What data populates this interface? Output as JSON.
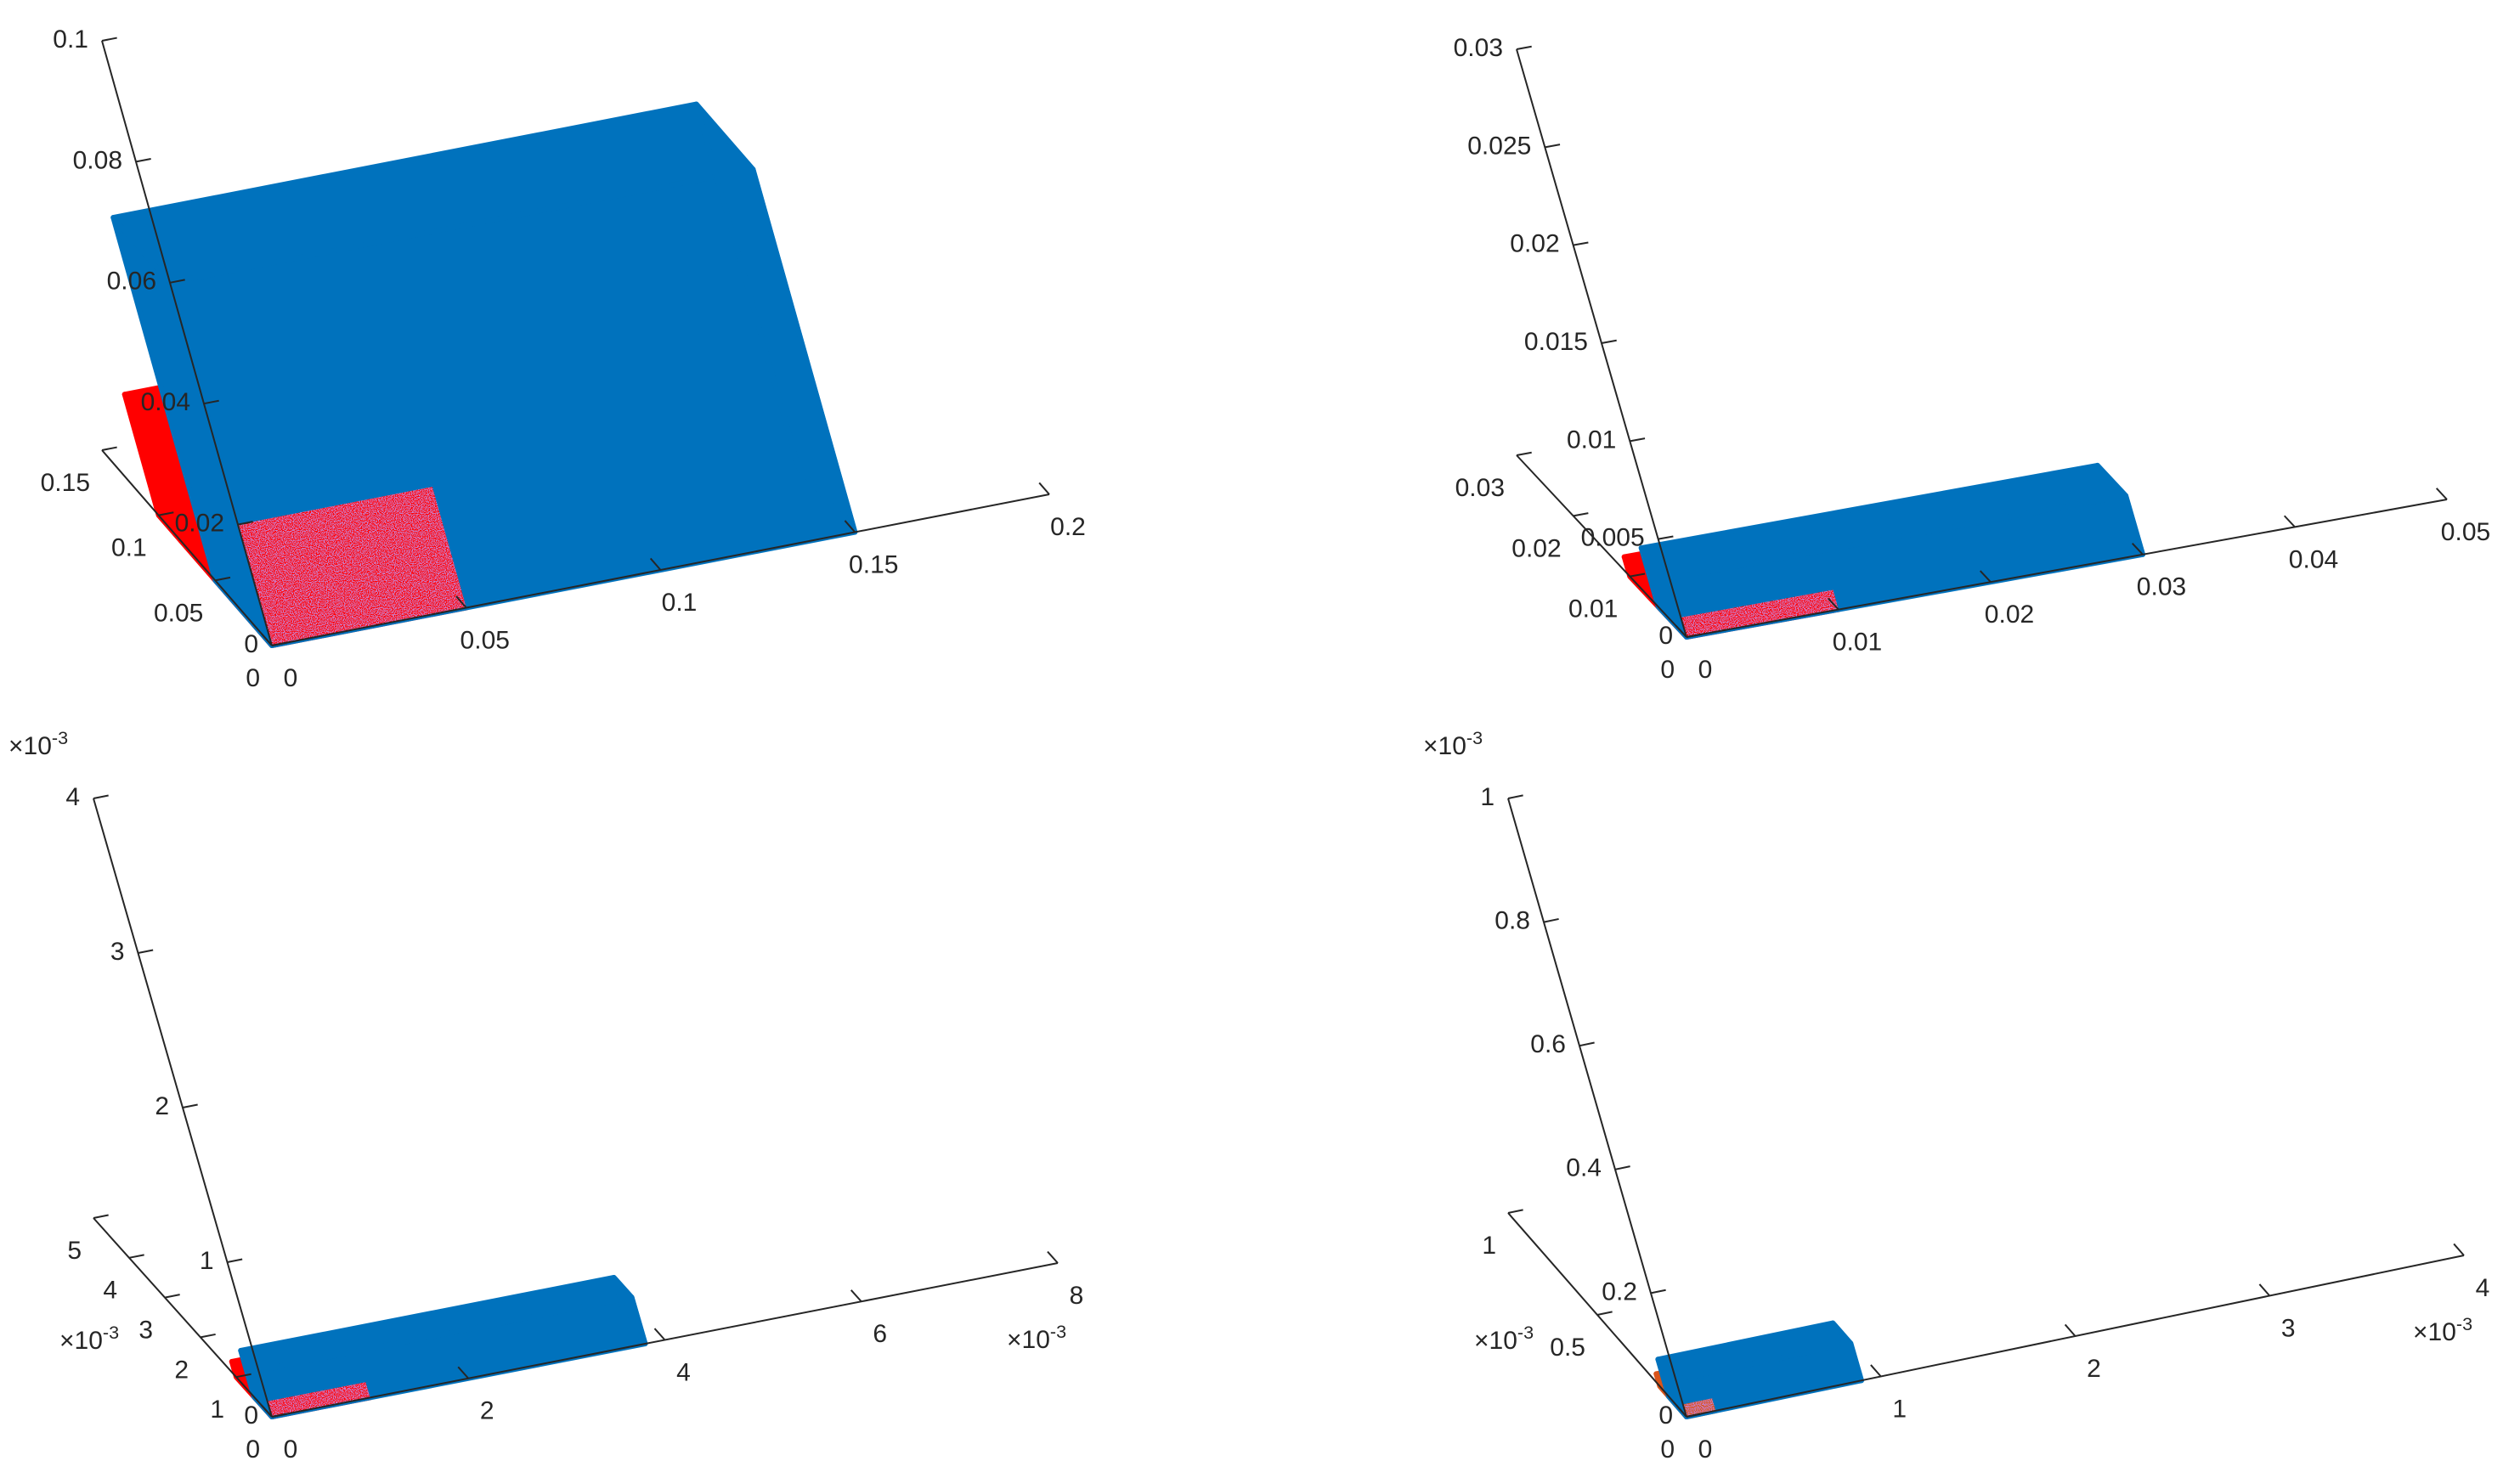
{
  "colors": {
    "axis": "#262626",
    "series_a": "#ff0000",
    "series_b": "#0072bd",
    "series_c": "#d95319",
    "mix": "#8a3aa0"
  },
  "chart_data": [
    {
      "type": "scatter",
      "view": "3d",
      "grid": false,
      "exponent_x": "",
      "exponent_y": "",
      "exponent_z": "",
      "x_ticks": [
        0,
        0.05,
        0.1,
        0.15,
        0.2
      ],
      "x_tick_labels": [
        "0",
        "0.05",
        "0.1",
        "0.15",
        "0.2"
      ],
      "y_ticks": [
        0,
        0.05,
        0.1,
        0.15
      ],
      "y_tick_labels": [
        "0",
        "0.05",
        "0.1",
        "0.15"
      ],
      "z_ticks": [
        0,
        0.02,
        0.04,
        0.06,
        0.08,
        0.1
      ],
      "z_tick_labels": [
        "0",
        "0.02",
        "0.04",
        "0.06",
        "0.08",
        "0.1"
      ],
      "series": [
        {
          "color_key": "series_a",
          "box": {
            "x": [
              0,
              0.05
            ],
            "y": [
              0,
              0.1
            ],
            "z": [
              0,
              0.02
            ]
          }
        },
        {
          "color_key": "series_b",
          "box": {
            "x": [
              0,
              0.15
            ],
            "y": [
              0,
              0.05
            ],
            "z": [
              0,
              0.06
            ]
          }
        }
      ]
    },
    {
      "type": "scatter",
      "view": "3d",
      "grid": false,
      "exponent_x": "",
      "exponent_y": "",
      "exponent_z": "",
      "x_ticks": [
        0,
        0.01,
        0.02,
        0.03,
        0.04,
        0.05
      ],
      "x_tick_labels": [
        "0",
        "0.01",
        "0.02",
        "0.03",
        "0.04",
        "0.05"
      ],
      "y_ticks": [
        0,
        0.01,
        0.02,
        0.03
      ],
      "y_tick_labels": [
        "0",
        "0.01",
        "0.02",
        "0.03"
      ],
      "z_ticks": [
        0,
        0.005,
        0.01,
        0.015,
        0.02,
        0.025,
        0.03
      ],
      "z_tick_labels": [
        "0",
        "0.005",
        "0.01",
        "0.015",
        "0.02",
        "0.025",
        "0.03"
      ],
      "series": [
        {
          "color_key": "series_a",
          "box": {
            "x": [
              0,
              0.01
            ],
            "y": [
              0,
              0.01
            ],
            "z": [
              0,
              0.001
            ]
          }
        },
        {
          "color_key": "series_b",
          "box": {
            "x": [
              0,
              0.03
            ],
            "y": [
              0,
              0.005
            ],
            "z": [
              0,
              0.003
            ]
          }
        }
      ]
    },
    {
      "type": "scatter",
      "view": "3d",
      "grid": false,
      "exponent_x": "×10",
      "exponent_y": "×10",
      "exponent_z": "×10",
      "exponent_power": "-3",
      "x_ticks": [
        0,
        2,
        4,
        6,
        8
      ],
      "x_tick_labels": [
        "0",
        "2",
        "4",
        "6",
        "8"
      ],
      "y_ticks": [
        0,
        1,
        2,
        3,
        4,
        5
      ],
      "y_tick_labels": [
        "0",
        "1",
        "2",
        "3",
        "4",
        "5"
      ],
      "z_ticks": [
        0,
        1,
        2,
        3,
        4
      ],
      "z_tick_labels": [
        "0",
        "1",
        "2",
        "3",
        "4"
      ],
      "series": [
        {
          "color_key": "series_a",
          "box": {
            "x": [
              0,
              1
            ],
            "y": [
              0,
              1
            ],
            "z": [
              0,
              0.1
            ]
          }
        },
        {
          "color_key": "series_b",
          "box": {
            "x": [
              0,
              3.8
            ],
            "y": [
              0,
              0.5
            ],
            "z": [
              0,
              0.3
            ]
          }
        }
      ]
    },
    {
      "type": "scatter",
      "view": "3d",
      "grid": false,
      "exponent_x": "×10",
      "exponent_y": "×10",
      "exponent_z": "×10",
      "exponent_power": "-3",
      "x_ticks": [
        0,
        1,
        2,
        3,
        4
      ],
      "x_tick_labels": [
        "0",
        "1",
        "2",
        "3",
        "4"
      ],
      "y_ticks": [
        0,
        0.5,
        1
      ],
      "y_tick_labels": [
        "0",
        "0.5",
        "1"
      ],
      "z_ticks": [
        0,
        0.2,
        0.4,
        0.6,
        0.8,
        1
      ],
      "z_tick_labels": [
        "0",
        "0.2",
        "0.4",
        "0.6",
        "0.8",
        "1"
      ],
      "series": [
        {
          "color_key": "series_c",
          "box": {
            "x": [
              0,
              0.15
            ],
            "y": [
              0,
              0.15
            ],
            "z": [
              0,
              0.02
            ]
          }
        },
        {
          "color_key": "series_b",
          "box": {
            "x": [
              0,
              0.9
            ],
            "y": [
              0,
              0.1
            ],
            "z": [
              0,
              0.06
            ]
          }
        }
      ]
    }
  ]
}
